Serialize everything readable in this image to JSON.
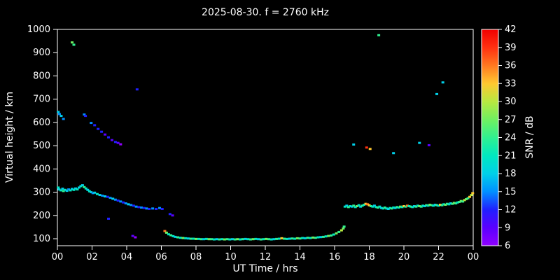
{
  "title": "2025-08-30. f = 2760 kHz",
  "chart_data": {
    "type": "scatter",
    "title": "2025-08-30. f = 2760 kHz",
    "xlabel": "UT Time / hrs",
    "ylabel": "Virtual height / km",
    "xlim": [
      0,
      24
    ],
    "ylim": [
      70,
      1000
    ],
    "grid": false,
    "background": "#000000",
    "text_color": "#ffffff",
    "axis_color": "#ffffff",
    "xticks": {
      "values": [
        0,
        2,
        4,
        6,
        8,
        10,
        12,
        14,
        16,
        18,
        20,
        22,
        24
      ],
      "labels": [
        "00",
        "02",
        "04",
        "06",
        "08",
        "10",
        "12",
        "14",
        "16",
        "18",
        "20",
        "22",
        "00"
      ]
    },
    "yticks": [
      100,
      200,
      300,
      400,
      500,
      600,
      700,
      800,
      900,
      1000
    ],
    "colorbar": {
      "label": "SNR / dB",
      "min": 6,
      "max": 42,
      "ticks": [
        6,
        9,
        12,
        15,
        18,
        21,
        24,
        27,
        30,
        33,
        36,
        39,
        42
      ],
      "stops": [
        {
          "value": 6,
          "color": "#9000ff"
        },
        {
          "value": 9,
          "color": "#5a00ff"
        },
        {
          "value": 12,
          "color": "#2020ff"
        },
        {
          "value": 15,
          "color": "#0090ff"
        },
        {
          "value": 18,
          "color": "#00d0e8"
        },
        {
          "value": 21,
          "color": "#00e8c0"
        },
        {
          "value": 24,
          "color": "#30f090"
        },
        {
          "value": 27,
          "color": "#70f060"
        },
        {
          "value": 30,
          "color": "#b8e840"
        },
        {
          "value": 33,
          "color": "#ffc830"
        },
        {
          "value": 36,
          "color": "#ff7820"
        },
        {
          "value": 39,
          "color": "#ff3010"
        },
        {
          "value": 42,
          "color": "#f00000"
        }
      ]
    },
    "point_units": [
      "UT hours",
      "km",
      "dB"
    ],
    "points": [
      [
        0.05,
        320,
        21
      ],
      [
        0.1,
        312,
        18
      ],
      [
        0.2,
        308,
        21
      ],
      [
        0.3,
        315,
        18
      ],
      [
        0.35,
        305,
        24
      ],
      [
        0.45,
        310,
        21
      ],
      [
        0.55,
        306,
        18
      ],
      [
        0.65,
        312,
        15
      ],
      [
        0.75,
        308,
        21
      ],
      [
        0.85,
        314,
        18
      ],
      [
        0.95,
        310,
        21
      ],
      [
        1.05,
        316,
        18
      ],
      [
        1.15,
        312,
        21
      ],
      [
        1.25,
        320,
        18
      ],
      [
        1.35,
        326,
        21
      ],
      [
        1.45,
        330,
        18
      ],
      [
        1.55,
        322,
        24
      ],
      [
        1.65,
        316,
        21
      ],
      [
        1.75,
        310,
        18
      ],
      [
        1.85,
        304,
        21
      ],
      [
        1.95,
        300,
        18
      ],
      [
        2.05,
        296,
        15
      ],
      [
        2.15,
        298,
        18
      ],
      [
        2.3,
        292,
        21
      ],
      [
        2.45,
        288,
        18
      ],
      [
        2.6,
        285,
        15
      ],
      [
        2.75,
        282,
        18
      ],
      [
        2.9,
        280,
        12
      ],
      [
        3.05,
        276,
        15
      ],
      [
        3.2,
        272,
        18
      ],
      [
        3.35,
        268,
        15
      ],
      [
        3.5,
        264,
        12
      ],
      [
        3.65,
        260,
        15
      ],
      [
        3.8,
        256,
        12
      ],
      [
        3.95,
        252,
        15
      ],
      [
        4.1,
        248,
        18
      ],
      [
        4.25,
        245,
        15
      ],
      [
        4.4,
        242,
        12
      ],
      [
        4.55,
        238,
        15
      ],
      [
        4.7,
        236,
        12
      ],
      [
        4.85,
        234,
        15
      ],
      [
        5.0,
        232,
        12
      ],
      [
        5.15,
        230,
        15
      ],
      [
        5.3,
        228,
        12
      ],
      [
        5.5,
        230,
        15
      ],
      [
        5.7,
        228,
        12
      ],
      [
        5.9,
        232,
        15
      ],
      [
        6.05,
        228,
        12
      ],
      [
        2.95,
        186,
        12
      ],
      [
        4.35,
        112,
        9
      ],
      [
        4.5,
        106,
        6
      ],
      [
        6.5,
        206,
        12
      ],
      [
        6.65,
        200,
        9
      ],
      [
        0.05,
        645,
        18
      ],
      [
        0.12,
        636,
        15
      ],
      [
        0.22,
        628,
        18
      ],
      [
        0.35,
        615,
        15
      ],
      [
        1.55,
        634,
        15
      ],
      [
        1.62,
        628,
        12
      ],
      [
        1.95,
        598,
        15
      ],
      [
        2.15,
        588,
        12
      ],
      [
        2.35,
        572,
        12
      ],
      [
        2.55,
        560,
        12
      ],
      [
        2.75,
        548,
        9
      ],
      [
        2.95,
        536,
        12
      ],
      [
        3.15,
        524,
        9
      ],
      [
        3.35,
        516,
        12
      ],
      [
        3.5,
        512,
        9
      ],
      [
        3.65,
        506,
        6
      ],
      [
        0.85,
        944,
        27
      ],
      [
        0.95,
        934,
        24
      ],
      [
        4.6,
        742,
        12
      ],
      [
        6.2,
        133,
        36
      ],
      [
        6.3,
        126,
        27
      ],
      [
        6.42,
        119,
        21
      ],
      [
        6.55,
        115,
        24
      ],
      [
        6.68,
        111,
        21
      ],
      [
        6.8,
        108,
        18
      ],
      [
        6.95,
        106,
        24
      ],
      [
        7.1,
        104,
        21
      ],
      [
        7.25,
        103,
        27
      ],
      [
        7.4,
        102,
        21
      ],
      [
        7.55,
        101,
        18
      ],
      [
        7.7,
        100,
        24
      ],
      [
        7.85,
        100,
        21
      ],
      [
        8.0,
        99,
        27
      ],
      [
        8.15,
        99,
        21
      ],
      [
        8.3,
        98,
        24
      ],
      [
        8.45,
        98,
        18
      ],
      [
        8.6,
        99,
        21
      ],
      [
        8.75,
        98,
        27
      ],
      [
        8.9,
        98,
        24
      ],
      [
        9.05,
        97,
        21
      ],
      [
        9.2,
        98,
        18
      ],
      [
        9.35,
        97,
        24
      ],
      [
        9.5,
        98,
        21
      ],
      [
        9.65,
        97,
        27
      ],
      [
        9.8,
        98,
        24
      ],
      [
        9.95,
        97,
        21
      ],
      [
        10.1,
        98,
        18
      ],
      [
        10.25,
        97,
        24
      ],
      [
        10.4,
        98,
        27
      ],
      [
        10.55,
        97,
        21
      ],
      [
        10.7,
        98,
        24
      ],
      [
        10.85,
        99,
        18
      ],
      [
        11.0,
        98,
        21
      ],
      [
        11.15,
        97,
        24
      ],
      [
        11.3,
        98,
        27
      ],
      [
        11.45,
        99,
        21
      ],
      [
        11.6,
        98,
        18
      ],
      [
        11.75,
        97,
        24
      ],
      [
        11.9,
        98,
        21
      ],
      [
        12.05,
        99,
        27
      ],
      [
        12.2,
        98,
        24
      ],
      [
        12.35,
        97,
        21
      ],
      [
        12.5,
        98,
        18
      ],
      [
        12.65,
        99,
        24
      ],
      [
        12.8,
        100,
        21
      ],
      [
        12.95,
        102,
        33
      ],
      [
        13.1,
        100,
        24
      ],
      [
        13.25,
        99,
        21
      ],
      [
        13.4,
        100,
        18
      ],
      [
        13.55,
        101,
        24
      ],
      [
        13.7,
        100,
        21
      ],
      [
        13.85,
        102,
        27
      ],
      [
        14.0,
        101,
        24
      ],
      [
        14.15,
        103,
        21
      ],
      [
        14.3,
        102,
        18
      ],
      [
        14.45,
        104,
        24
      ],
      [
        14.6,
        103,
        21
      ],
      [
        14.75,
        105,
        27
      ],
      [
        14.9,
        104,
        24
      ],
      [
        15.05,
        106,
        21
      ],
      [
        15.2,
        107,
        18
      ],
      [
        15.35,
        108,
        24
      ],
      [
        15.5,
        110,
        21
      ],
      [
        15.65,
        112,
        27
      ],
      [
        15.8,
        114,
        24
      ],
      [
        15.95,
        118,
        21
      ],
      [
        16.1,
        123,
        27
      ],
      [
        16.25,
        129,
        24
      ],
      [
        16.4,
        136,
        30
      ],
      [
        16.5,
        144,
        27
      ],
      [
        16.55,
        152,
        24
      ],
      [
        16.6,
        238,
        21
      ],
      [
        16.7,
        242,
        18
      ],
      [
        16.8,
        236,
        24
      ],
      [
        16.9,
        240,
        21
      ],
      [
        17.0,
        238,
        18
      ],
      [
        17.1,
        242,
        24
      ],
      [
        17.2,
        236,
        21
      ],
      [
        17.3,
        240,
        27
      ],
      [
        17.4,
        244,
        21
      ],
      [
        17.5,
        238,
        18
      ],
      [
        17.6,
        242,
        24
      ],
      [
        17.7,
        246,
        21
      ],
      [
        17.8,
        250,
        33
      ],
      [
        17.9,
        248,
        36
      ],
      [
        18.0,
        244,
        33
      ],
      [
        18.1,
        240,
        24
      ],
      [
        18.2,
        238,
        21
      ],
      [
        18.3,
        242,
        18
      ],
      [
        18.4,
        236,
        21
      ],
      [
        18.5,
        234,
        24
      ],
      [
        18.6,
        238,
        21
      ],
      [
        18.7,
        232,
        18
      ],
      [
        18.8,
        230,
        21
      ],
      [
        18.9,
        234,
        24
      ],
      [
        19.0,
        230,
        21
      ],
      [
        19.1,
        228,
        18
      ],
      [
        19.2,
        232,
        21
      ],
      [
        19.3,
        230,
        24
      ],
      [
        19.4,
        234,
        21
      ],
      [
        19.5,
        232,
        18
      ],
      [
        19.6,
        236,
        24
      ],
      [
        19.7,
        234,
        21
      ],
      [
        19.8,
        238,
        27
      ],
      [
        19.9,
        236,
        21
      ],
      [
        20.0,
        240,
        33
      ],
      [
        20.1,
        238,
        24
      ],
      [
        20.2,
        242,
        36
      ],
      [
        20.3,
        240,
        21
      ],
      [
        20.4,
        238,
        24
      ],
      [
        20.5,
        236,
        21
      ],
      [
        20.6,
        240,
        18
      ],
      [
        20.7,
        238,
        24
      ],
      [
        20.8,
        242,
        21
      ],
      [
        20.9,
        240,
        27
      ],
      [
        21.0,
        238,
        24
      ],
      [
        21.1,
        242,
        21
      ],
      [
        21.2,
        240,
        18
      ],
      [
        21.3,
        244,
        24
      ],
      [
        21.4,
        242,
        21
      ],
      [
        21.5,
        246,
        27
      ],
      [
        21.6,
        244,
        24
      ],
      [
        21.7,
        242,
        21
      ],
      [
        21.8,
        246,
        18
      ],
      [
        21.9,
        244,
        24
      ],
      [
        22.0,
        242,
        21
      ],
      [
        22.1,
        246,
        33
      ],
      [
        22.2,
        244,
        24
      ],
      [
        22.3,
        248,
        21
      ],
      [
        22.4,
        246,
        27
      ],
      [
        22.5,
        250,
        24
      ],
      [
        22.6,
        248,
        21
      ],
      [
        22.7,
        252,
        18
      ],
      [
        22.8,
        250,
        24
      ],
      [
        22.9,
        254,
        27
      ],
      [
        23.0,
        252,
        24
      ],
      [
        23.1,
        256,
        21
      ],
      [
        23.2,
        258,
        24
      ],
      [
        23.3,
        262,
        27
      ],
      [
        23.4,
        260,
        24
      ],
      [
        23.5,
        266,
        30
      ],
      [
        23.6,
        270,
        27
      ],
      [
        23.7,
        274,
        24
      ],
      [
        23.8,
        280,
        33
      ],
      [
        23.9,
        288,
        30
      ],
      [
        23.97,
        296,
        33
      ],
      [
        18.55,
        975,
        24
      ],
      [
        21.9,
        722,
        18
      ],
      [
        22.25,
        772,
        18
      ],
      [
        17.1,
        505,
        18
      ],
      [
        17.85,
        492,
        39
      ],
      [
        18.05,
        486,
        33
      ],
      [
        19.4,
        468,
        18
      ],
      [
        20.9,
        512,
        18
      ],
      [
        21.45,
        502,
        9
      ]
    ]
  }
}
